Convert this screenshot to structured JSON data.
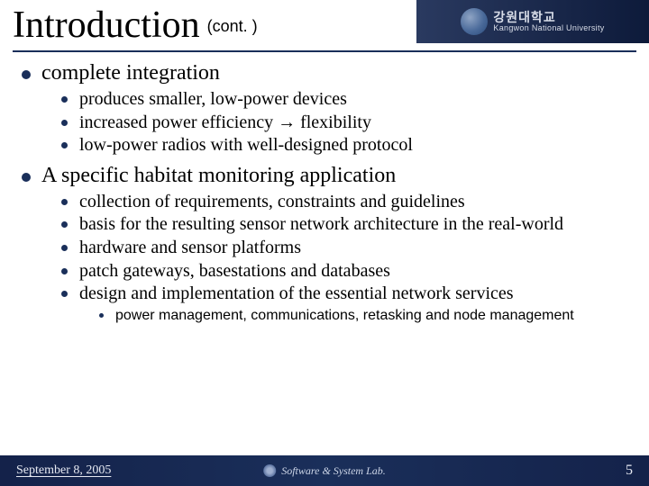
{
  "colors": {
    "accent": "#1a2f5a",
    "footer_bg_mid": "#1a2f5a",
    "footer_bg_edge": "#14224a",
    "logo_bg_left": "#2a3a60",
    "logo_bg_right": "#0d1a3a",
    "header_text": "#000000",
    "body_text": "#000000",
    "footer_text": "#e6e9f2",
    "background": "#ffffff"
  },
  "typography": {
    "title_fontsize": 42,
    "subtitle_fontsize": 18,
    "lvl1_fontsize": 24,
    "lvl2_fontsize": 20,
    "lvl3_fontsize": 16,
    "footer_fontsize": 14
  },
  "header": {
    "title": "Introduction",
    "subtitle": "(cont. )",
    "logo_korean": "강원대학교",
    "logo_english": "Kangwon National University"
  },
  "content": {
    "items": [
      {
        "text": "complete integration",
        "children": [
          {
            "text": "produces smaller, low-power devices"
          },
          {
            "text": "increased power efficiency → flexibility"
          },
          {
            "text": "low-power radios with well-designed protocol"
          }
        ]
      },
      {
        "text": "A specific habitat monitoring application",
        "children": [
          {
            "text": "collection of requirements, constraints and guidelines"
          },
          {
            "text": "basis for the resulting sensor network architecture in the real-world"
          },
          {
            "text": "hardware and sensor platforms"
          },
          {
            "text": "patch gateways, basestations and databases"
          },
          {
            "text": "design and implementation of the essential network services",
            "children": [
              {
                "text": "power management, communications, retasking and node management"
              }
            ]
          }
        ]
      }
    ]
  },
  "footer": {
    "date": "September 8, 2005",
    "center": "Software & System Lab.",
    "page": "5"
  }
}
